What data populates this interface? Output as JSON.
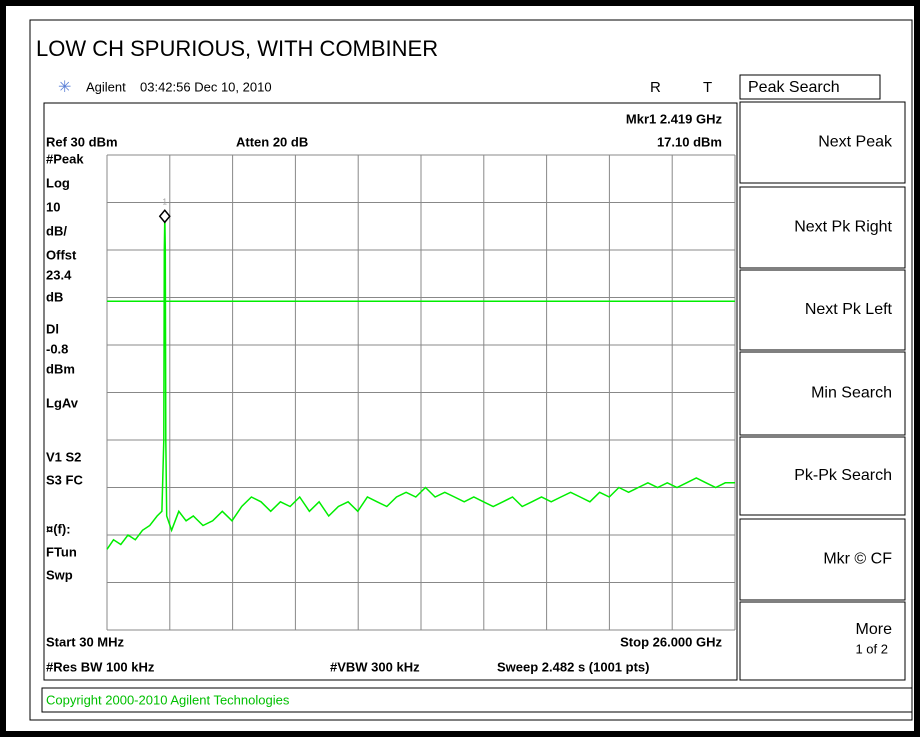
{
  "title": "LOW CH SPURIOUS, WITH COMBINER",
  "header": {
    "brand": "Agilent",
    "datetime": "03:42:56  Dec 10, 2010",
    "flag_r": "R",
    "flag_t": "T"
  },
  "annotations": {
    "ref_level": "Ref 30 dBm",
    "atten": "Atten 20 dB",
    "start": "Start 30 MHz",
    "stop": "Stop 26.000 GHz",
    "res_bw": "#Res BW 100 kHz",
    "vbw": "#VBW 300 kHz",
    "sweep": "Sweep 2.482 s (1001 pts)"
  },
  "left_panel": [
    "#Peak",
    "Log",
    "10",
    "dB/",
    "Offst",
    "23.4",
    "dB",
    "Dl",
    "-0.8",
    "dBm",
    "LgAv",
    "V1  S2",
    "S3  FC",
    "¤(f):",
    "FTun",
    "Swp"
  ],
  "marker": {
    "label": "Mkr1 2.419 GHz",
    "value_label": "17.10 dBm",
    "id": "1",
    "x": 2.419,
    "y": 17.1
  },
  "display_line": -0.8,
  "trace": {
    "xlim": [
      0.03,
      26
    ],
    "ylim": [
      -70,
      30
    ],
    "color": "#00ee00",
    "x": [
      0.03,
      0.3,
      0.6,
      0.9,
      1.2,
      1.5,
      1.8,
      2.1,
      2.3,
      2.38,
      2.4,
      2.419,
      2.44,
      2.46,
      2.5,
      2.7,
      3.0,
      3.3,
      3.6,
      4.0,
      4.4,
      4.8,
      5.2,
      5.6,
      6.0,
      6.4,
      6.8,
      7.2,
      7.6,
      8.0,
      8.4,
      8.8,
      9.2,
      9.6,
      10.0,
      10.4,
      10.8,
      11.2,
      11.6,
      12.0,
      12.4,
      12.8,
      13.2,
      13.6,
      14.0,
      14.4,
      14.8,
      15.2,
      15.6,
      16.0,
      16.4,
      16.8,
      17.2,
      17.6,
      18.0,
      18.4,
      18.8,
      19.2,
      19.6,
      20.0,
      20.4,
      20.8,
      21.2,
      21.6,
      22.0,
      22.4,
      22.8,
      23.2,
      23.6,
      24.0,
      24.4,
      24.8,
      25.2,
      25.6,
      26.0
    ],
    "y": [
      -53,
      -51,
      -52,
      -50,
      -51,
      -49,
      -48,
      -46,
      -45,
      -30,
      10,
      17.1,
      10,
      -30,
      -46,
      -49,
      -45,
      -47,
      -46,
      -48,
      -47,
      -45,
      -47,
      -44,
      -42,
      -43,
      -45,
      -43,
      -44,
      -42,
      -45,
      -43,
      -46,
      -44,
      -43,
      -45,
      -42,
      -43,
      -44,
      -42,
      -41,
      -42,
      -40,
      -42,
      -41,
      -42,
      -43,
      -42,
      -43,
      -44,
      -43,
      -42,
      -44,
      -43,
      -42,
      -43,
      -42,
      -41,
      -42,
      -43,
      -41,
      -42,
      -40,
      -41,
      -40,
      -39,
      -40,
      -39,
      -40,
      -39,
      -38,
      -39,
      -40,
      -39,
      -39
    ]
  },
  "softkeys": {
    "header": "Peak Search",
    "keys": [
      "Next Peak",
      "Next Pk Right",
      "Next Pk Left",
      "Min Search",
      "Pk-Pk Search",
      "Mkr © CF",
      "More",
      "1 of 2"
    ]
  },
  "footer": "Copyright 2000-2010 Agilent Technologies"
}
